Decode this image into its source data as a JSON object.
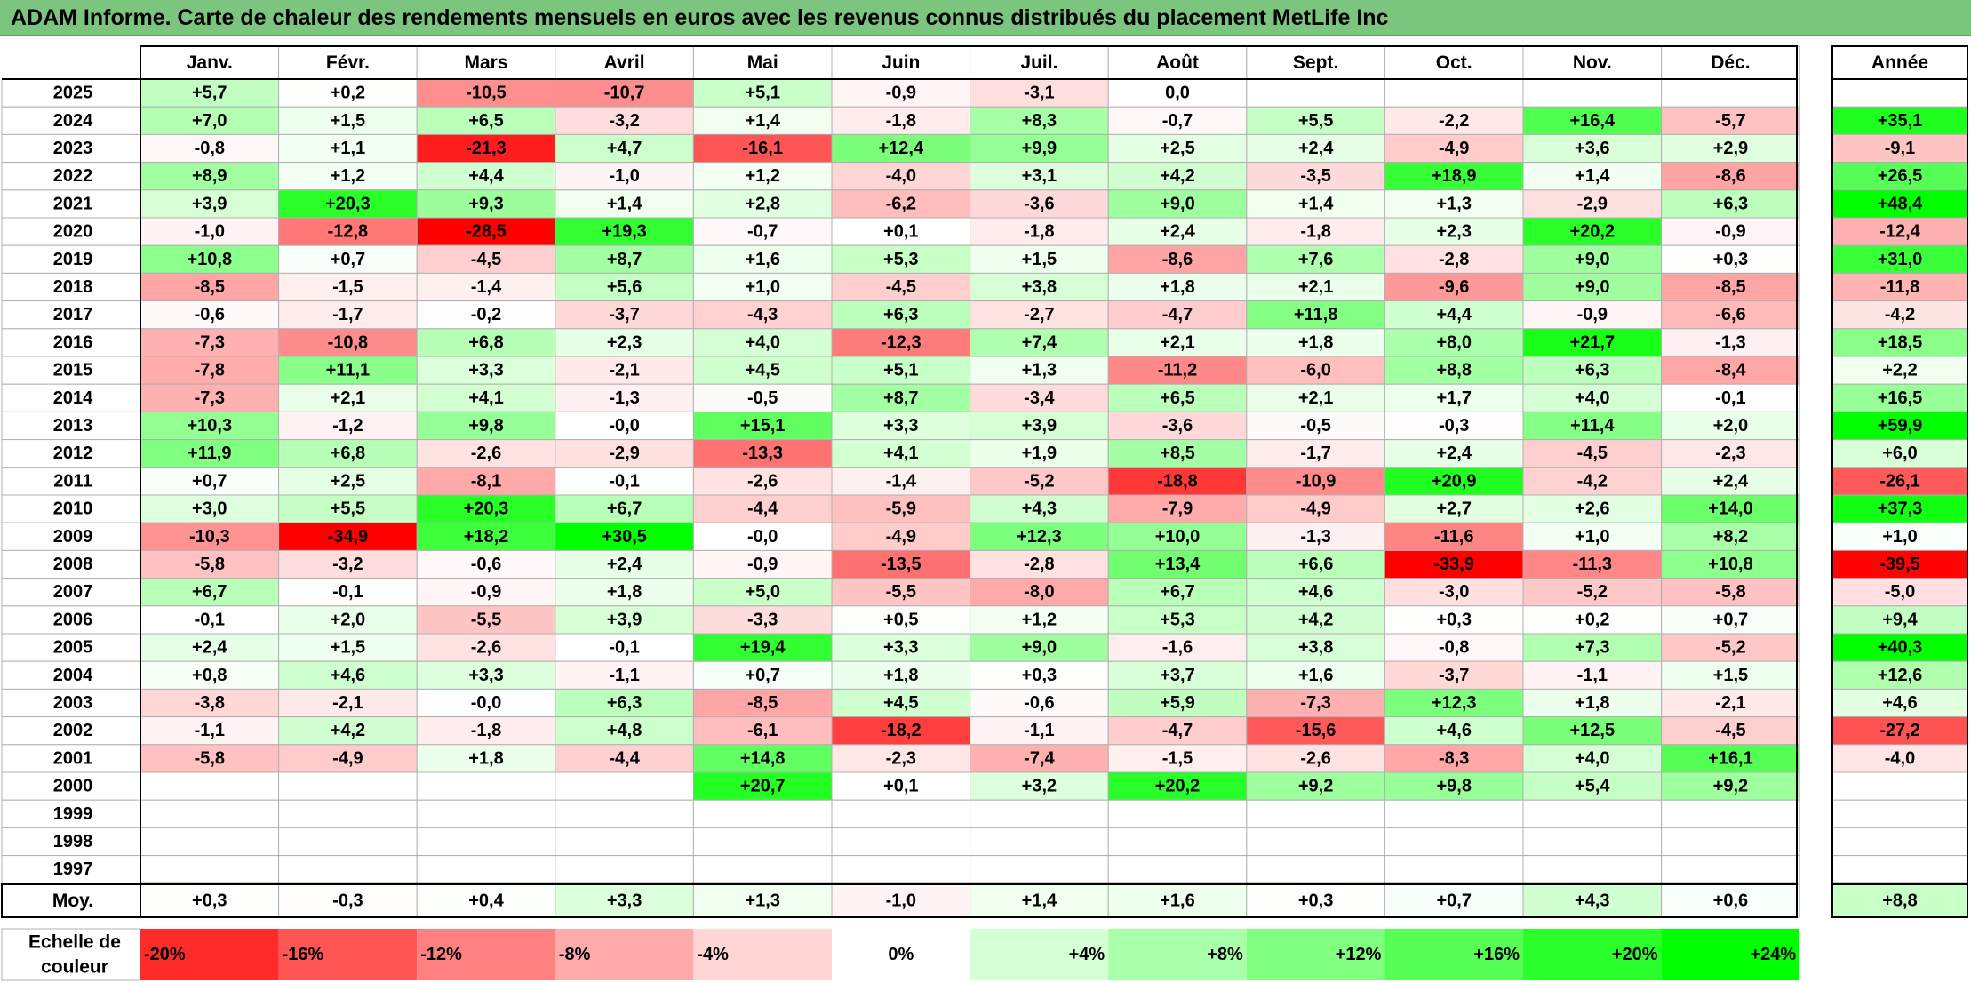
{
  "title": "ADAM Informe. Carte de chaleur des rendements mensuels en euros avec les revenus connus distribués du placement MetLife Inc",
  "chart_data": {
    "type": "heatmap",
    "title": "ADAM Informe. Carte de chaleur des rendements mensuels en euros avec les revenus connus distribués du placement MetLife Inc",
    "columns": [
      "Janv.",
      "Févr.",
      "Mars",
      "Avril",
      "Mai",
      "Juin",
      "Juil.",
      "Août",
      "Sept.",
      "Oct.",
      "Nov.",
      "Déc."
    ],
    "year_column_label": "Année",
    "rows": [
      {
        "year": "2025",
        "values": [
          "+5,7",
          "+0,2",
          "-10,5",
          "-10,7",
          "+5,1",
          "-0,9",
          "-3,1",
          "0,0",
          "",
          "",
          "",
          ""
        ],
        "annual": ""
      },
      {
        "year": "2024",
        "values": [
          "+7,0",
          "+1,5",
          "+6,5",
          "-3,2",
          "+1,4",
          "-1,8",
          "+8,3",
          "-0,7",
          "+5,5",
          "-2,2",
          "+16,4",
          "-5,7"
        ],
        "annual": "+35,1"
      },
      {
        "year": "2023",
        "values": [
          "-0,8",
          "+1,1",
          "-21,3",
          "+4,7",
          "-16,1",
          "+12,4",
          "+9,9",
          "+2,5",
          "+2,4",
          "-4,9",
          "+3,6",
          "+2,9"
        ],
        "annual": "-9,1"
      },
      {
        "year": "2022",
        "values": [
          "+8,9",
          "+1,2",
          "+4,4",
          "-1,0",
          "+1,2",
          "-4,0",
          "+3,1",
          "+4,2",
          "-3,5",
          "+18,9",
          "+1,4",
          "-8,6"
        ],
        "annual": "+26,5"
      },
      {
        "year": "2021",
        "values": [
          "+3,9",
          "+20,3",
          "+9,3",
          "+1,4",
          "+2,8",
          "-6,2",
          "-3,6",
          "+9,0",
          "+1,4",
          "+1,3",
          "-2,9",
          "+6,3"
        ],
        "annual": "+48,4"
      },
      {
        "year": "2020",
        "values": [
          "-1,0",
          "-12,8",
          "-28,5",
          "+19,3",
          "-0,7",
          "+0,1",
          "-1,8",
          "+2,4",
          "-1,8",
          "+2,3",
          "+20,2",
          "-0,9"
        ],
        "annual": "-12,4"
      },
      {
        "year": "2019",
        "values": [
          "+10,8",
          "+0,7",
          "-4,5",
          "+8,7",
          "+1,6",
          "+5,3",
          "+1,5",
          "-8,6",
          "+7,6",
          "-2,8",
          "+9,0",
          "+0,3"
        ],
        "annual": "+31,0"
      },
      {
        "year": "2018",
        "values": [
          "-8,5",
          "-1,5",
          "-1,4",
          "+5,6",
          "+1,0",
          "-4,5",
          "+3,8",
          "+1,8",
          "+2,1",
          "-9,6",
          "+9,0",
          "-8,5"
        ],
        "annual": "-11,8"
      },
      {
        "year": "2017",
        "values": [
          "-0,6",
          "-1,7",
          "-0,2",
          "-3,7",
          "-4,3",
          "+6,3",
          "-2,7",
          "-4,7",
          "+11,8",
          "+4,4",
          "-0,9",
          "-6,6"
        ],
        "annual": "-4,2"
      },
      {
        "year": "2016",
        "values": [
          "-7,3",
          "-10,8",
          "+6,8",
          "+2,3",
          "+4,0",
          "-12,3",
          "+7,4",
          "+2,1",
          "+1,8",
          "+8,0",
          "+21,7",
          "-1,3"
        ],
        "annual": "+18,5"
      },
      {
        "year": "2015",
        "values": [
          "-7,8",
          "+11,1",
          "+3,3",
          "-2,1",
          "+4,5",
          "+5,1",
          "+1,3",
          "-11,2",
          "-6,0",
          "+8,8",
          "+6,3",
          "-8,4"
        ],
        "annual": "+2,2"
      },
      {
        "year": "2014",
        "values": [
          "-7,3",
          "+2,1",
          "+4,1",
          "-1,3",
          "-0,5",
          "+8,7",
          "-3,4",
          "+6,5",
          "+2,1",
          "+1,7",
          "+4,0",
          "-0,1"
        ],
        "annual": "+16,5"
      },
      {
        "year": "2013",
        "values": [
          "+10,3",
          "-1,2",
          "+9,8",
          "-0,0",
          "+15,1",
          "+3,3",
          "+3,9",
          "-3,6",
          "-0,5",
          "-0,3",
          "+11,4",
          "+2,0"
        ],
        "annual": "+59,9"
      },
      {
        "year": "2012",
        "values": [
          "+11,9",
          "+6,8",
          "-2,6",
          "-2,9",
          "-13,3",
          "+4,1",
          "+1,9",
          "+8,5",
          "-1,7",
          "+2,4",
          "-4,5",
          "-2,3"
        ],
        "annual": "+6,0"
      },
      {
        "year": "2011",
        "values": [
          "+0,7",
          "+2,5",
          "-8,1",
          "-0,1",
          "-2,6",
          "-1,4",
          "-5,2",
          "-18,8",
          "-10,9",
          "+20,9",
          "-4,2",
          "+2,4"
        ],
        "annual": "-26,1"
      },
      {
        "year": "2010",
        "values": [
          "+3,0",
          "+5,5",
          "+20,3",
          "+6,7",
          "-4,4",
          "-5,9",
          "+4,3",
          "-7,9",
          "-4,9",
          "+2,7",
          "+2,6",
          "+14,0"
        ],
        "annual": "+37,3"
      },
      {
        "year": "2009",
        "values": [
          "-10,3",
          "-34,9",
          "+18,2",
          "+30,5",
          "-0,0",
          "-4,9",
          "+12,3",
          "+10,0",
          "-1,3",
          "-11,6",
          "+1,0",
          "+8,2"
        ],
        "annual": "+1,0"
      },
      {
        "year": "2008",
        "values": [
          "-5,8",
          "-3,2",
          "-0,6",
          "+2,4",
          "-0,9",
          "-13,5",
          "-2,8",
          "+13,4",
          "+6,6",
          "-33,9",
          "-11,3",
          "+10,8"
        ],
        "annual": "-39,5"
      },
      {
        "year": "2007",
        "values": [
          "+6,7",
          "-0,1",
          "-0,9",
          "+1,8",
          "+5,0",
          "-5,5",
          "-8,0",
          "+6,7",
          "+4,6",
          "-3,0",
          "-5,2",
          "-5,8"
        ],
        "annual": "-5,0"
      },
      {
        "year": "2006",
        "values": [
          "-0,1",
          "+2,0",
          "-5,5",
          "+3,9",
          "-3,3",
          "+0,5",
          "+1,2",
          "+5,3",
          "+4,2",
          "+0,3",
          "+0,2",
          "+0,7"
        ],
        "annual": "+9,4"
      },
      {
        "year": "2005",
        "values": [
          "+2,4",
          "+1,5",
          "-2,6",
          "-0,1",
          "+19,4",
          "+3,3",
          "+9,0",
          "-1,6",
          "+3,8",
          "-0,8",
          "+7,3",
          "-5,2"
        ],
        "annual": "+40,3"
      },
      {
        "year": "2004",
        "values": [
          "+0,8",
          "+4,6",
          "+3,3",
          "-1,1",
          "+0,7",
          "+1,8",
          "+0,3",
          "+3,7",
          "+1,6",
          "-3,7",
          "-1,1",
          "+1,5"
        ],
        "annual": "+12,6"
      },
      {
        "year": "2003",
        "values": [
          "-3,8",
          "-2,1",
          "-0,0",
          "+6,3",
          "-8,5",
          "+4,5",
          "-0,6",
          "+5,9",
          "-7,3",
          "+12,3",
          "+1,8",
          "-2,1"
        ],
        "annual": "+4,6"
      },
      {
        "year": "2002",
        "values": [
          "-1,1",
          "+4,2",
          "-1,8",
          "+4,8",
          "-6,1",
          "-18,2",
          "-1,1",
          "-4,7",
          "-15,6",
          "+4,6",
          "+12,5",
          "-4,5"
        ],
        "annual": "-27,2"
      },
      {
        "year": "2001",
        "values": [
          "-5,8",
          "-4,9",
          "+1,8",
          "-4,4",
          "+14,8",
          "-2,3",
          "-7,4",
          "-1,5",
          "-2,6",
          "-8,3",
          "+4,0",
          "+16,1"
        ],
        "annual": "-4,0"
      },
      {
        "year": "2000",
        "values": [
          "",
          "",
          "",
          "",
          "+20,7",
          "+0,1",
          "+3,2",
          "+20,2",
          "+9,2",
          "+9,8",
          "+5,4",
          "+9,2"
        ],
        "annual": ""
      },
      {
        "year": "1999",
        "values": [
          "",
          "",
          "",
          "",
          "",
          "",
          "",
          "",
          "",
          "",
          "",
          ""
        ],
        "annual": ""
      },
      {
        "year": "1998",
        "values": [
          "",
          "",
          "",
          "",
          "",
          "",
          "",
          "",
          "",
          "",
          "",
          ""
        ],
        "annual": ""
      },
      {
        "year": "1997",
        "values": [
          "",
          "",
          "",
          "",
          "",
          "",
          "",
          "",
          "",
          "",
          "",
          ""
        ],
        "annual": ""
      }
    ],
    "average": {
      "label": "Moy.",
      "values": [
        "+0,3",
        "-0,3",
        "+0,4",
        "+3,3",
        "+1,3",
        "-1,0",
        "+1,4",
        "+1,6",
        "+0,3",
        "+0,7",
        "+4,3",
        "+0,6"
      ],
      "annual": "+8,8"
    },
    "color_scale": {
      "label_line1": "Echelle de",
      "label_line2": "couleur",
      "stops": [
        "-20%",
        "-16%",
        "-12%",
        "-8%",
        "-4%",
        "0%",
        "+4%",
        "+8%",
        "+12%",
        "+16%",
        "+20%",
        "+24%"
      ],
      "stop_values": [
        -20,
        -16,
        -12,
        -8,
        -4,
        0,
        4,
        8,
        12,
        16,
        20,
        24
      ],
      "negative_color": "#ff0000",
      "positive_color": "#00ff00",
      "neutral_color": "#ffffff",
      "annual_saturation": 40
    },
    "colors": {
      "title_background": "#7cc57e",
      "grid_line": "#b0b0b0",
      "border": "#000000"
    }
  }
}
